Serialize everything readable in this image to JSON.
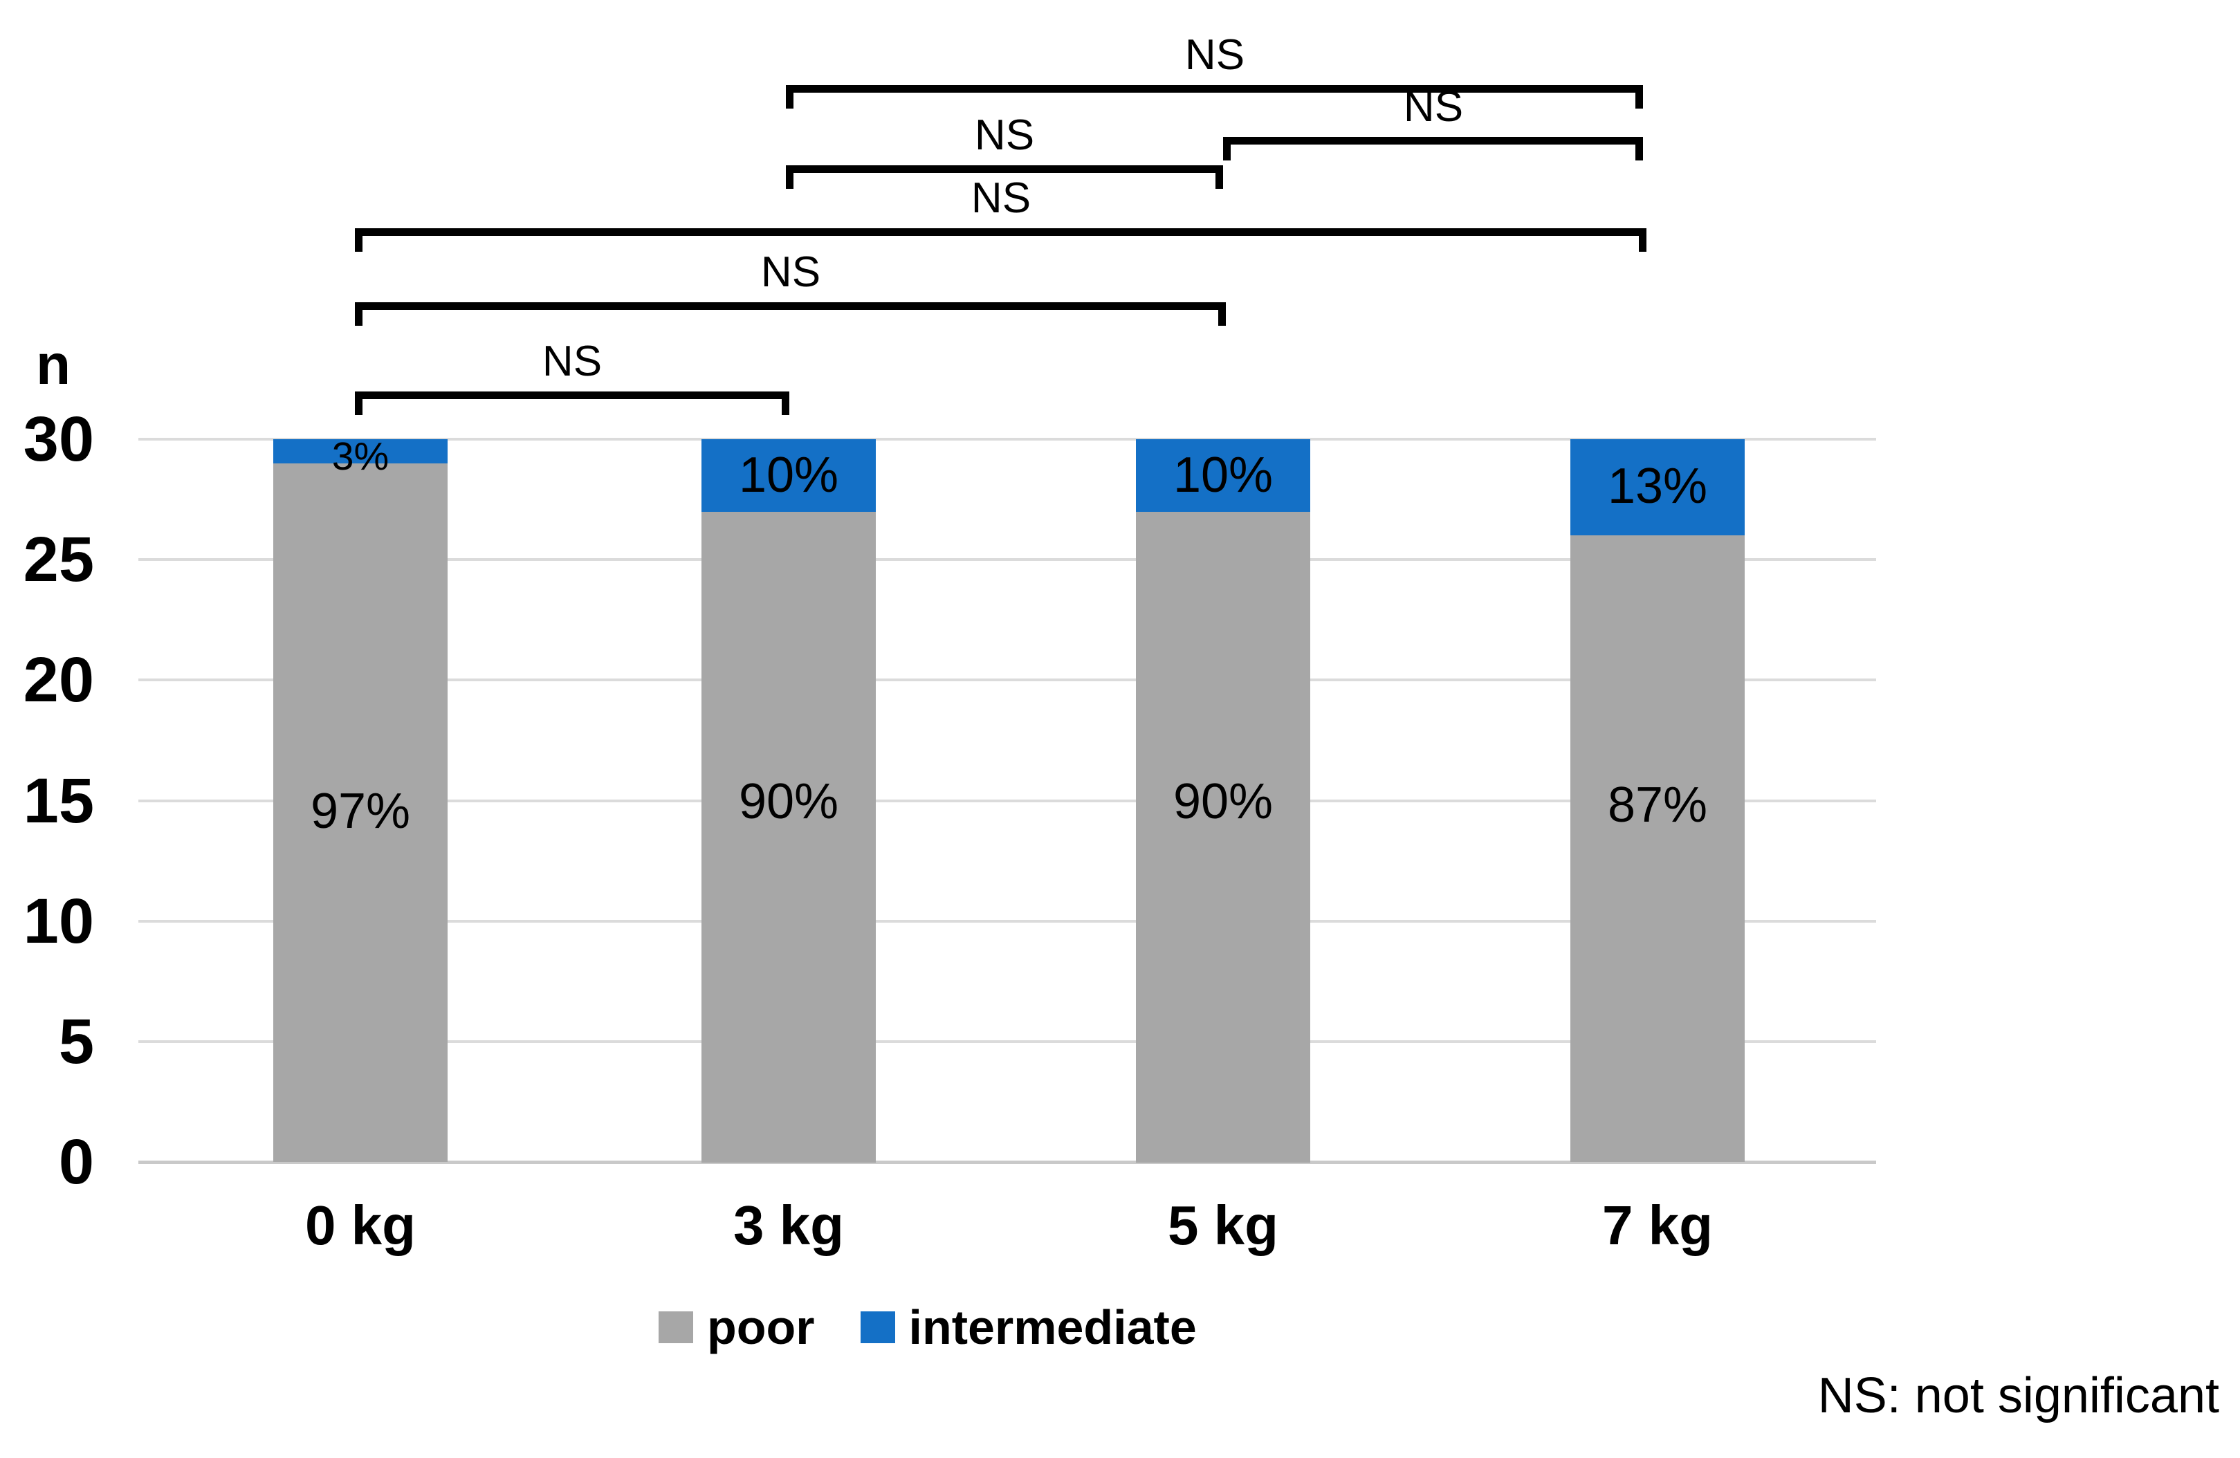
{
  "chart_data": {
    "type": "bar",
    "stacked": true,
    "title": "",
    "ylabel": "n",
    "categories": [
      "0 kg",
      "3 kg",
      "5 kg",
      "7 kg"
    ],
    "series": [
      {
        "name": "poor",
        "color": "#A7A7A7",
        "values": [
          29,
          27,
          27,
          26
        ],
        "percent_labels": [
          "97%",
          "90%",
          "90%",
          "87%"
        ]
      },
      {
        "name": "intermediate",
        "color": "#1470C6",
        "values": [
          1,
          3,
          3,
          4
        ],
        "percent_labels": [
          "3%",
          "10%",
          "10%",
          "13%"
        ]
      }
    ],
    "total_per_bar": 30,
    "ylim": [
      0,
      30
    ],
    "yticks": [
      0,
      5,
      10,
      15,
      20,
      25,
      30
    ],
    "grid": true,
    "gridline_color": "#DBDBDB",
    "baseline_color": "#C9C9C9",
    "bar_label_color": "#000000",
    "bracket_color": "#000000",
    "legend_position": "bottom",
    "significance_brackets": [
      {
        "from": "3 kg",
        "to": "7 kg",
        "label": "NS"
      },
      {
        "from": "5 kg",
        "to": "7 kg",
        "label": "NS"
      },
      {
        "from": "3 kg",
        "to": "5 kg",
        "label": "NS"
      },
      {
        "from": "0 kg",
        "to": "7 kg",
        "label": "NS"
      },
      {
        "from": "0 kg",
        "to": "5 kg",
        "label": "NS"
      },
      {
        "from": "0 kg",
        "to": "3 kg",
        "label": "NS"
      }
    ],
    "footnote": "NS: not significant"
  }
}
